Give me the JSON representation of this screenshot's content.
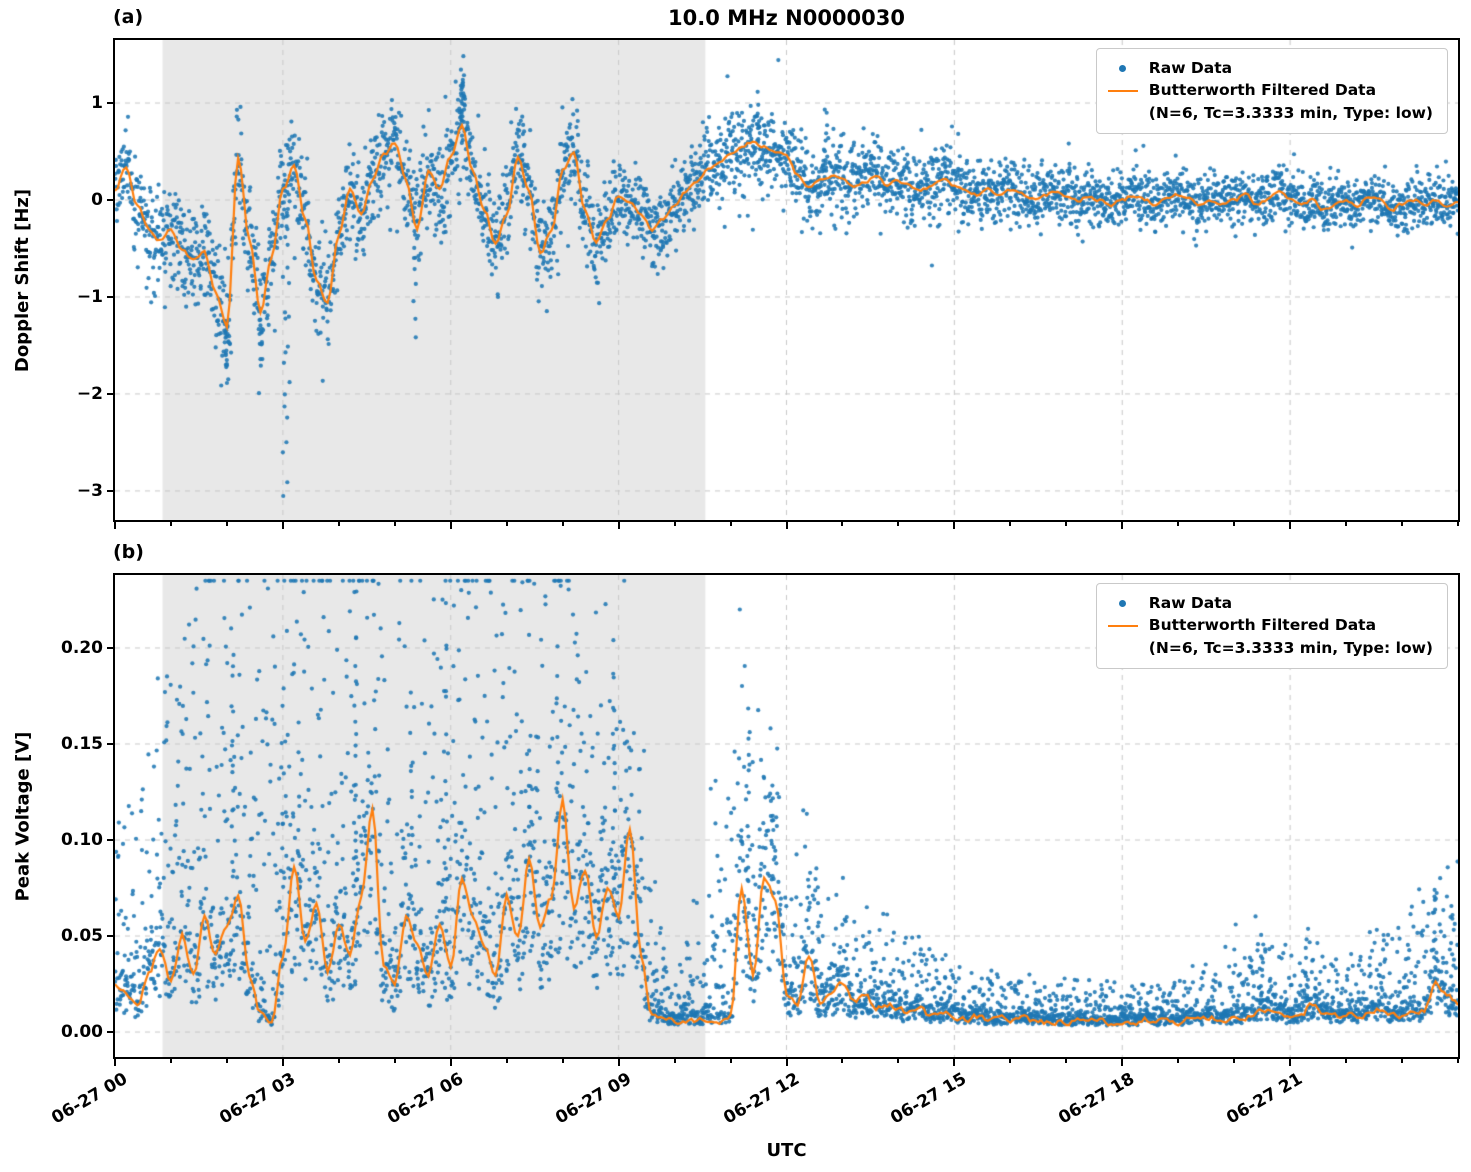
{
  "figure": {
    "title": "10.0 MHz N0000030",
    "xlabel": "UTC",
    "panel_a_label": "(a)",
    "panel_b_label": "(b)",
    "xtick_labels": [
      "06-27 00",
      "06-27 03",
      "06-27 06",
      "06-27 09",
      "06-27 12",
      "06-27 15",
      "06-27 18",
      "06-27 21"
    ],
    "colors": {
      "raw": "#1f77b4",
      "filtered": "#ff7f0e",
      "shade": "#e8e8e8",
      "grid": "#c8c8c8"
    },
    "legend": {
      "raw_label": "Raw Data",
      "filtered_label": "Butterworth Filtered Data",
      "filtered_sublabel": "(N=6, Tc=3.3333 min, Type: low)"
    }
  },
  "chart_data": [
    {
      "type": "scatter",
      "panel": "a",
      "ylabel": "Doppler Shift [Hz]",
      "ylim": [
        -3.3,
        1.65
      ],
      "yticks": [
        -3,
        -2,
        -1,
        0,
        1
      ],
      "ytick_labels": [
        "−3",
        "−2",
        "−1",
        "0",
        "1"
      ],
      "xlim_hours": [
        0,
        24
      ],
      "xticks_hours": [
        0,
        3,
        6,
        9,
        12,
        15,
        18,
        21
      ],
      "shaded_region_hours": [
        0.85,
        10.55
      ],
      "scatter_mode": "gauss",
      "x_step_hours": 0.2,
      "line_jitter": 0.035,
      "series": [
        {
          "name": "Raw Data",
          "style": "scatter",
          "color": "#1f77b4"
        },
        {
          "name": "Butterworth Filtered Data (N=6, Tc=3.3333 min, Type: low)",
          "style": "line",
          "color": "#ff7f0e"
        }
      ],
      "filtered_values": [
        0.1,
        0.35,
        -0.05,
        -0.3,
        -0.42,
        -0.3,
        -0.5,
        -0.62,
        -0.55,
        -0.95,
        -1.3,
        0.45,
        -0.4,
        -1.15,
        -0.6,
        0.1,
        0.35,
        -0.2,
        -0.85,
        -1.05,
        -0.35,
        0.1,
        -0.15,
        0.2,
        0.45,
        0.6,
        0.2,
        -0.3,
        0.3,
        0.1,
        0.45,
        0.75,
        0.3,
        -0.1,
        -0.45,
        -0.15,
        0.45,
        0.1,
        -0.55,
        -0.3,
        0.3,
        0.5,
        -0.1,
        -0.45,
        -0.2,
        0.05,
        -0.05,
        -0.15,
        -0.3,
        -0.2,
        -0.05,
        0.1,
        0.2,
        0.3,
        0.4,
        0.5,
        0.55,
        0.6,
        0.55,
        0.5,
        0.45,
        0.25,
        0.15,
        0.2,
        0.25,
        0.2,
        0.15,
        0.2,
        0.25,
        0.15,
        0.2,
        0.15,
        0.1,
        0.15,
        0.2,
        0.15,
        0.1,
        0.05,
        0.1,
        0.05,
        0.1,
        0.05,
        0,
        0.05,
        0.1,
        0.05,
        0,
        0.05,
        0,
        -0.05,
        0,
        0.05,
        0,
        -0.05,
        0,
        0.05,
        0,
        -0.05,
        0,
        -0.05,
        0,
        0.05,
        -0.05,
        0,
        0.1,
        0,
        -0.05,
        0,
        -0.1,
        -0.05,
        0,
        -0.05,
        0.05,
        0,
        -0.1,
        -0.05,
        0,
        -0.05,
        0,
        -0.05,
        0
      ],
      "scatter_sigma_per_hour": [
        0.2,
        0.25,
        0.3,
        0.3,
        0.25,
        0.25,
        0.3,
        0.25,
        0.25,
        0.2,
        0.2,
        0.22,
        0.22,
        0.2,
        0.18,
        0.18,
        0.15,
        0.15,
        0.13,
        0.13,
        0.13,
        0.15,
        0.13,
        0.13,
        0.13
      ],
      "outliers": [
        [
          3.02,
          -3.05
        ],
        [
          3.06,
          -2.9
        ],
        [
          3.1,
          -2.25
        ],
        [
          2.0,
          -1.9
        ],
        [
          1.98,
          -1.75
        ],
        [
          2.6,
          -1.5
        ],
        [
          6.2,
          1.45
        ],
        [
          6.23,
          1.3
        ],
        [
          6.18,
          1.15
        ],
        [
          5.35,
          -1.4
        ],
        [
          7.3,
          0.8
        ],
        [
          11.5,
          0.95
        ],
        [
          12.7,
          0.9
        ]
      ]
    },
    {
      "type": "scatter",
      "panel": "b",
      "ylabel": "Peak Voltage [V]",
      "ylim": [
        -0.013,
        0.238
      ],
      "yticks": [
        0,
        0.05,
        0.1,
        0.15,
        0.2
      ],
      "ytick_labels": [
        "0.00",
        "0.05",
        "0.10",
        "0.15",
        "0.20"
      ],
      "xlim_hours": [
        0,
        24
      ],
      "xticks_hours": [
        0,
        3,
        6,
        9,
        12,
        15,
        18,
        21
      ],
      "shaded_region_hours": [
        0.85,
        10.55
      ],
      "scatter_mode": "spiky",
      "x_step_hours": 0.2,
      "line_jitter": 0.003,
      "clip": [
        0.0015,
        0.235
      ],
      "series": [
        {
          "name": "Raw Data",
          "style": "scatter",
          "color": "#1f77b4"
        },
        {
          "name": "Butterworth Filtered Data (N=6, Tc=3.3333 min, Type: low)",
          "style": "line",
          "color": "#ff7f0e"
        }
      ],
      "filtered_values": [
        0.025,
        0.02,
        0.015,
        0.03,
        0.045,
        0.025,
        0.05,
        0.03,
        0.06,
        0.04,
        0.055,
        0.07,
        0.03,
        0.01,
        0.005,
        0.04,
        0.085,
        0.045,
        0.065,
        0.03,
        0.055,
        0.04,
        0.07,
        0.115,
        0.035,
        0.025,
        0.06,
        0.045,
        0.03,
        0.055,
        0.035,
        0.08,
        0.06,
        0.045,
        0.03,
        0.07,
        0.05,
        0.09,
        0.055,
        0.07,
        0.12,
        0.065,
        0.085,
        0.05,
        0.075,
        0.06,
        0.105,
        0.04,
        0.008,
        0.006,
        0.006,
        0.007,
        0.006,
        0.007,
        0.006,
        0.008,
        0.075,
        0.03,
        0.08,
        0.07,
        0.02,
        0.015,
        0.04,
        0.015,
        0.02,
        0.025,
        0.015,
        0.02,
        0.012,
        0.015,
        0.012,
        0.01,
        0.012,
        0.008,
        0.01,
        0.008,
        0.007,
        0.008,
        0.006,
        0.007,
        0.006,
        0.007,
        0.006,
        0.005,
        0.006,
        0.005,
        0.006,
        0.005,
        0.006,
        0.005,
        0.006,
        0.005,
        0.007,
        0.005,
        0.006,
        0.005,
        0.007,
        0.006,
        0.008,
        0.006,
        0.007,
        0.008,
        0.01,
        0.012,
        0.01,
        0.008,
        0.01,
        0.015,
        0.01,
        0.008,
        0.01,
        0.008,
        0.01,
        0.012,
        0.01,
        0.008,
        0.01,
        0.012,
        0.025,
        0.02,
        0.015
      ],
      "scatter_amp_per_hour": [
        0.04,
        0.06,
        0.1,
        0.09,
        0.1,
        0.08,
        0.1,
        0.09,
        0.08,
        0.07,
        0.005,
        0.07,
        0.035,
        0.02,
        0.015,
        0.01,
        0.008,
        0.008,
        0.008,
        0.008,
        0.015,
        0.015,
        0.012,
        0.02,
        0.03
      ],
      "outliers": [
        [
          2.1,
          0.212
        ],
        [
          2.12,
          0.185
        ],
        [
          4.3,
          0.23
        ],
        [
          4.32,
          0.205
        ],
        [
          4.28,
          0.19
        ],
        [
          5.9,
          0.225
        ],
        [
          5.92,
          0.2
        ],
        [
          7.9,
          0.2
        ],
        [
          8.9,
          0.205
        ],
        [
          8.92,
          0.185
        ],
        [
          3.0,
          0.17
        ],
        [
          3.3,
          0.16
        ],
        [
          5.3,
          0.175
        ],
        [
          7.4,
          0.155
        ],
        [
          11.3,
          0.17
        ],
        [
          11.32,
          0.155
        ],
        [
          11.75,
          0.13
        ],
        [
          12.55,
          0.085
        ],
        [
          23.6,
          0.075
        ],
        [
          21.3,
          0.055
        ],
        [
          20.5,
          0.05
        ],
        [
          23.9,
          0.06
        ]
      ]
    }
  ]
}
